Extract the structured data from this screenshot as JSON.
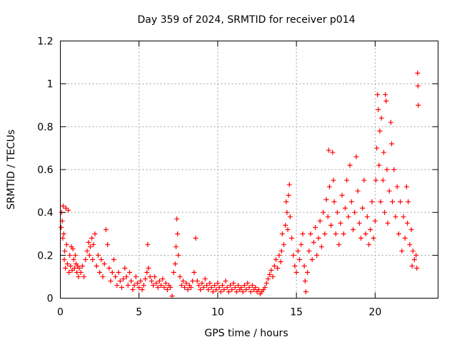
{
  "chart_data": {
    "type": "scatter",
    "title": "Day 359 of 2024, SRMTID for receiver p014",
    "xlabel": "GPS time / hours",
    "ylabel": "SRMTID / TECUs",
    "xlim": [
      0,
      24
    ],
    "ylim": [
      0,
      1.2
    ],
    "xticks": [
      0,
      5,
      10,
      15,
      20
    ],
    "yticks": [
      0,
      0.2,
      0.4,
      0.6,
      0.8,
      1,
      1.2
    ],
    "grid": true,
    "marker": "+",
    "color": "#ff0000",
    "series": [
      {
        "name": "SRMTID",
        "points": [
          [
            0.05,
            0.33
          ],
          [
            0.08,
            0.4
          ],
          [
            0.12,
            0.36
          ],
          [
            0.15,
            0.28
          ],
          [
            0.18,
            0.43
          ],
          [
            0.22,
            0.3
          ],
          [
            0.25,
            0.18
          ],
          [
            0.28,
            0.22
          ],
          [
            0.32,
            0.14
          ],
          [
            0.35,
            0.42
          ],
          [
            0.4,
            0.25
          ],
          [
            0.45,
            0.16
          ],
          [
            0.5,
            0.41
          ],
          [
            0.55,
            0.12
          ],
          [
            0.6,
            0.2
          ],
          [
            0.65,
            0.15
          ],
          [
            0.7,
            0.24
          ],
          [
            0.75,
            0.13
          ],
          [
            0.8,
            0.23
          ],
          [
            0.85,
            0.18
          ],
          [
            0.9,
            0.14
          ],
          [
            0.95,
            0.2
          ],
          [
            1.0,
            0.16
          ],
          [
            1.05,
            0.12
          ],
          [
            1.1,
            0.15
          ],
          [
            1.15,
            0.1
          ],
          [
            1.2,
            0.14
          ],
          [
            1.3,
            0.12
          ],
          [
            1.4,
            0.15
          ],
          [
            1.5,
            0.1
          ],
          [
            1.6,
            0.18
          ],
          [
            1.7,
            0.22
          ],
          [
            1.8,
            0.26
          ],
          [
            1.85,
            0.2
          ],
          [
            1.9,
            0.24
          ],
          [
            2.0,
            0.28
          ],
          [
            2.05,
            0.18
          ],
          [
            2.1,
            0.25
          ],
          [
            2.2,
            0.3
          ],
          [
            2.3,
            0.15
          ],
          [
            2.4,
            0.2
          ],
          [
            2.5,
            0.12
          ],
          [
            2.6,
            0.18
          ],
          [
            2.7,
            0.1
          ],
          [
            2.8,
            0.16
          ],
          [
            2.9,
            0.32
          ],
          [
            3.0,
            0.25
          ],
          [
            3.1,
            0.14
          ],
          [
            3.2,
            0.08
          ],
          [
            3.3,
            0.12
          ],
          [
            3.4,
            0.18
          ],
          [
            3.5,
            0.1
          ],
          [
            3.6,
            0.06
          ],
          [
            3.7,
            0.12
          ],
          [
            3.8,
            0.08
          ],
          [
            3.9,
            0.05
          ],
          [
            4.0,
            0.09
          ],
          [
            4.1,
            0.14
          ],
          [
            4.2,
            0.1
          ],
          [
            4.3,
            0.06
          ],
          [
            4.4,
            0.12
          ],
          [
            4.5,
            0.08
          ],
          [
            4.6,
            0.04
          ],
          [
            4.7,
            0.06
          ],
          [
            4.8,
            0.1
          ],
          [
            4.9,
            0.07
          ],
          [
            5.0,
            0.05
          ],
          [
            5.1,
            0.08
          ],
          [
            5.2,
            0.04
          ],
          [
            5.3,
            0.06
          ],
          [
            5.4,
            0.09
          ],
          [
            5.5,
            0.12
          ],
          [
            5.55,
            0.25
          ],
          [
            5.6,
            0.14
          ],
          [
            5.7,
            0.1
          ],
          [
            5.8,
            0.08
          ],
          [
            5.9,
            0.06
          ],
          [
            6.0,
            0.1
          ],
          [
            6.1,
            0.07
          ],
          [
            6.2,
            0.05
          ],
          [
            6.3,
            0.08
          ],
          [
            6.4,
            0.06
          ],
          [
            6.5,
            0.09
          ],
          [
            6.6,
            0.05
          ],
          [
            6.7,
            0.07
          ],
          [
            6.8,
            0.04
          ],
          [
            6.9,
            0.06
          ],
          [
            7.0,
            0.05
          ],
          [
            7.1,
            0.01
          ],
          [
            7.2,
            0.12
          ],
          [
            7.3,
            0.16
          ],
          [
            7.35,
            0.24
          ],
          [
            7.4,
            0.37
          ],
          [
            7.45,
            0.3
          ],
          [
            7.5,
            0.2
          ],
          [
            7.6,
            0.1
          ],
          [
            7.7,
            0.06
          ],
          [
            7.8,
            0.08
          ],
          [
            7.9,
            0.05
          ],
          [
            8.0,
            0.07
          ],
          [
            8.1,
            0.04
          ],
          [
            8.2,
            0.06
          ],
          [
            8.3,
            0.05
          ],
          [
            8.4,
            0.08
          ],
          [
            8.5,
            0.12
          ],
          [
            8.6,
            0.28
          ],
          [
            8.7,
            0.08
          ],
          [
            8.8,
            0.06
          ],
          [
            8.9,
            0.04
          ],
          [
            9.0,
            0.07
          ],
          [
            9.1,
            0.05
          ],
          [
            9.2,
            0.09
          ],
          [
            9.3,
            0.06
          ],
          [
            9.4,
            0.04
          ],
          [
            9.5,
            0.07
          ],
          [
            9.6,
            0.05
          ],
          [
            9.7,
            0.03
          ],
          [
            9.8,
            0.06
          ],
          [
            9.9,
            0.04
          ],
          [
            10.0,
            0.07
          ],
          [
            10.1,
            0.05
          ],
          [
            10.2,
            0.03
          ],
          [
            10.3,
            0.06
          ],
          [
            10.4,
            0.04
          ],
          [
            10.5,
            0.08
          ],
          [
            10.6,
            0.05
          ],
          [
            10.7,
            0.03
          ],
          [
            10.8,
            0.06
          ],
          [
            10.9,
            0.04
          ],
          [
            11.0,
            0.07
          ],
          [
            11.1,
            0.05
          ],
          [
            11.2,
            0.03
          ],
          [
            11.3,
            0.06
          ],
          [
            11.4,
            0.04
          ],
          [
            11.5,
            0.05
          ],
          [
            11.6,
            0.03
          ],
          [
            11.7,
            0.06
          ],
          [
            11.8,
            0.04
          ],
          [
            11.9,
            0.07
          ],
          [
            12.0,
            0.05
          ],
          [
            12.1,
            0.03
          ],
          [
            12.2,
            0.06
          ],
          [
            12.3,
            0.04
          ],
          [
            12.4,
            0.05
          ],
          [
            12.5,
            0.03
          ],
          [
            12.6,
            0.04
          ],
          [
            12.7,
            0.02
          ],
          [
            12.8,
            0.03
          ],
          [
            12.9,
            0.04
          ],
          [
            13.0,
            0.05
          ],
          [
            13.1,
            0.07
          ],
          [
            13.2,
            0.09
          ],
          [
            13.3,
            0.11
          ],
          [
            13.4,
            0.13
          ],
          [
            13.5,
            0.1
          ],
          [
            13.6,
            0.15
          ],
          [
            13.7,
            0.18
          ],
          [
            13.8,
            0.14
          ],
          [
            13.9,
            0.2
          ],
          [
            14.0,
            0.17
          ],
          [
            14.05,
            0.22
          ],
          [
            14.1,
            0.3
          ],
          [
            14.2,
            0.25
          ],
          [
            14.3,
            0.34
          ],
          [
            14.35,
            0.45
          ],
          [
            14.4,
            0.4
          ],
          [
            14.45,
            0.32
          ],
          [
            14.5,
            0.48
          ],
          [
            14.55,
            0.53
          ],
          [
            14.6,
            0.38
          ],
          [
            14.7,
            0.28
          ],
          [
            14.8,
            0.2
          ],
          [
            14.9,
            0.15
          ],
          [
            15.0,
            0.12
          ],
          [
            15.1,
            0.22
          ],
          [
            15.2,
            0.18
          ],
          [
            15.3,
            0.25
          ],
          [
            15.4,
            0.3
          ],
          [
            15.5,
            0.15
          ],
          [
            15.55,
            0.08
          ],
          [
            15.6,
            0.03
          ],
          [
            15.7,
            0.12
          ],
          [
            15.8,
            0.22
          ],
          [
            15.9,
            0.3
          ],
          [
            16.0,
            0.18
          ],
          [
            16.1,
            0.26
          ],
          [
            16.2,
            0.33
          ],
          [
            16.3,
            0.2
          ],
          [
            16.4,
            0.28
          ],
          [
            16.5,
            0.36
          ],
          [
            16.6,
            0.24
          ],
          [
            16.7,
            0.4
          ],
          [
            16.8,
            0.3
          ],
          [
            16.9,
            0.46
          ],
          [
            17.0,
            0.38
          ],
          [
            17.05,
            0.69
          ],
          [
            17.1,
            0.52
          ],
          [
            17.2,
            0.34
          ],
          [
            17.3,
            0.68
          ],
          [
            17.35,
            0.55
          ],
          [
            17.4,
            0.45
          ],
          [
            17.5,
            0.3
          ],
          [
            17.6,
            0.4
          ],
          [
            17.7,
            0.25
          ],
          [
            17.8,
            0.35
          ],
          [
            17.9,
            0.48
          ],
          [
            18.0,
            0.3
          ],
          [
            18.1,
            0.42
          ],
          [
            18.2,
            0.55
          ],
          [
            18.3,
            0.38
          ],
          [
            18.4,
            0.62
          ],
          [
            18.5,
            0.45
          ],
          [
            18.6,
            0.32
          ],
          [
            18.7,
            0.4
          ],
          [
            18.8,
            0.66
          ],
          [
            18.9,
            0.5
          ],
          [
            19.0,
            0.35
          ],
          [
            19.1,
            0.28
          ],
          [
            19.2,
            0.42
          ],
          [
            19.3,
            0.55
          ],
          [
            19.4,
            0.3
          ],
          [
            19.5,
            0.38
          ],
          [
            19.6,
            0.25
          ],
          [
            19.7,
            0.32
          ],
          [
            19.8,
            0.45
          ],
          [
            19.9,
            0.28
          ],
          [
            20.0,
            0.36
          ],
          [
            20.05,
            0.55
          ],
          [
            20.1,
            0.7
          ],
          [
            20.15,
            0.95
          ],
          [
            20.2,
            0.88
          ],
          [
            20.25,
            0.62
          ],
          [
            20.3,
            0.78
          ],
          [
            20.35,
            0.45
          ],
          [
            20.4,
            0.84
          ],
          [
            20.5,
            0.55
          ],
          [
            20.55,
            0.68
          ],
          [
            20.6,
            0.4
          ],
          [
            20.65,
            0.95
          ],
          [
            20.7,
            0.92
          ],
          [
            20.75,
            0.6
          ],
          [
            20.8,
            0.35
          ],
          [
            20.9,
            0.5
          ],
          [
            21.0,
            0.82
          ],
          [
            21.05,
            0.72
          ],
          [
            21.1,
            0.45
          ],
          [
            21.2,
            0.6
          ],
          [
            21.3,
            0.38
          ],
          [
            21.4,
            0.52
          ],
          [
            21.5,
            0.3
          ],
          [
            21.6,
            0.45
          ],
          [
            21.7,
            0.22
          ],
          [
            21.8,
            0.38
          ],
          [
            21.9,
            0.28
          ],
          [
            22.0,
            0.52
          ],
          [
            22.05,
            0.35
          ],
          [
            22.1,
            0.45
          ],
          [
            22.2,
            0.25
          ],
          [
            22.3,
            0.32
          ],
          [
            22.35,
            0.15
          ],
          [
            22.4,
            0.22
          ],
          [
            22.5,
            0.18
          ],
          [
            22.6,
            0.2
          ],
          [
            22.65,
            0.14
          ],
          [
            22.7,
            1.05
          ],
          [
            22.72,
            0.99
          ],
          [
            22.74,
            0.9
          ]
        ]
      }
    ]
  }
}
